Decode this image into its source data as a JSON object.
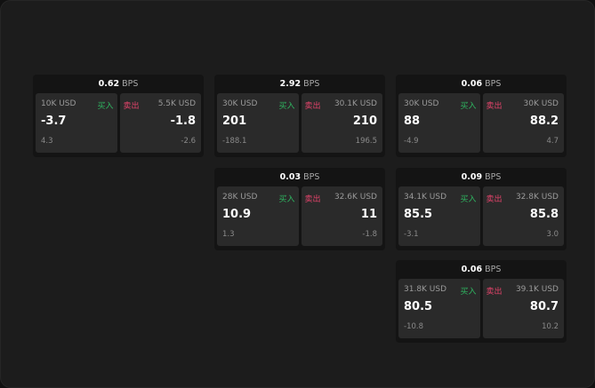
{
  "unit_label": "BPS",
  "buy_label": "买入",
  "sell_label": "卖出",
  "colors": {
    "buy": "#2fb560",
    "sell": "#e2436a",
    "background": "#1c1c1c"
  },
  "panels": [
    {
      "spread": "0.62",
      "buy": {
        "amount": "10K USD",
        "price": "-3.7",
        "change": "4.3"
      },
      "sell": {
        "amount": "5.5K USD",
        "price": "-1.8",
        "change": "-2.6"
      }
    },
    {
      "spread": "2.92",
      "buy": {
        "amount": "30K USD",
        "price": "201",
        "change": "-188.1"
      },
      "sell": {
        "amount": "30.1K USD",
        "price": "210",
        "change": "196.5"
      }
    },
    {
      "spread": "0.06",
      "buy": {
        "amount": "30K USD",
        "price": "88",
        "change": "-4.9"
      },
      "sell": {
        "amount": "30K USD",
        "price": "88.2",
        "change": "4.7"
      }
    },
    {
      "spread": "0.03",
      "buy": {
        "amount": "28K USD",
        "price": "10.9",
        "change": "1.3"
      },
      "sell": {
        "amount": "32.6K USD",
        "price": "11",
        "change": "-1.8"
      }
    },
    {
      "spread": "0.09",
      "buy": {
        "amount": "34.1K USD",
        "price": "85.5",
        "change": "-3.1"
      },
      "sell": {
        "amount": "32.8K USD",
        "price": "85.8",
        "change": "3.0"
      }
    },
    {
      "spread": "0.06",
      "buy": {
        "amount": "31.8K USD",
        "price": "80.5",
        "change": "-10.8"
      },
      "sell": {
        "amount": "39.1K USD",
        "price": "80.7",
        "change": "10.2"
      }
    }
  ]
}
